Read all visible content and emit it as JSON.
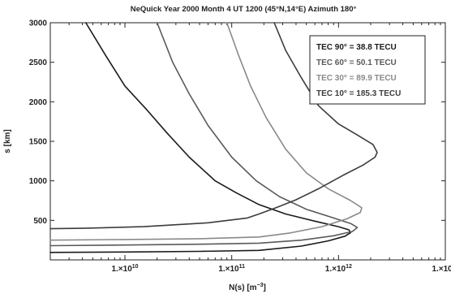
{
  "chart_data": {
    "type": "line",
    "title": "NeQuick   Year 2000  Month 4  UT 1200   (45°N,14°E)   Azimuth 180°",
    "xlabel_base": "N(s) [m",
    "xlabel_exp": "−3",
    "xlabel_tail": "]",
    "ylabel": "s [km]",
    "xscale": "log",
    "xlim": [
      2000000000.0,
      10000000000000.0
    ],
    "ylim": [
      0,
      3000
    ],
    "xticks": [
      {
        "value": 10000000000.0,
        "label": "1.×10",
        "exp": "10"
      },
      {
        "value": 100000000000.0,
        "label": "1.×10",
        "exp": "11"
      },
      {
        "value": 1000000000000.0,
        "label": "1.×10",
        "exp": "12"
      },
      {
        "value": 10000000000000.0,
        "label": "1.×10",
        "exp": "13"
      }
    ],
    "yticks": [
      {
        "value": 500,
        "label": "500"
      },
      {
        "value": 1000,
        "label": "1000"
      },
      {
        "value": 1500,
        "label": "1500"
      },
      {
        "value": 2000,
        "label": "2000"
      },
      {
        "value": 2500,
        "label": "2500"
      },
      {
        "value": 3000,
        "label": "3000"
      }
    ],
    "grid": false,
    "legend_position": "top-right",
    "series": [
      {
        "name": "TEC 90° =   38.8 TECU",
        "color": "#1a1a1a",
        "points": [
          [
            2000000000.0,
            95
          ],
          [
            10000000000.0,
            100
          ],
          [
            50000000000.0,
            108
          ],
          [
            180000000000.0,
            120
          ],
          [
            450000000000.0,
            175
          ],
          [
            800000000000.0,
            240
          ],
          [
            1150000000000.0,
            300
          ],
          [
            1300000000000.0,
            345
          ],
          [
            1250000000000.0,
            380
          ],
          [
            1000000000000.0,
            420
          ],
          [
            600000000000.0,
            490
          ],
          [
            320000000000.0,
            580
          ],
          [
            180000000000.0,
            700
          ],
          [
            110000000000.0,
            850
          ],
          [
            70000000000.0,
            1000
          ],
          [
            40000000000.0,
            1300
          ],
          [
            25000000000.0,
            1600
          ],
          [
            16000000000.0,
            1900
          ],
          [
            10000000000.0,
            2200
          ],
          [
            6500000000.0,
            2600
          ],
          [
            4300000000.0,
            3000
          ]
        ]
      },
      {
        "name": "TEC 60° =   50.1 TECU",
        "color": "#5a5a5a",
        "points": [
          [
            2000000000.0,
            180
          ],
          [
            10000000000.0,
            188
          ],
          [
            50000000000.0,
            198
          ],
          [
            180000000000.0,
            212
          ],
          [
            450000000000.0,
            250
          ],
          [
            900000000000.0,
            305
          ],
          [
            1350000000000.0,
            360
          ],
          [
            1500000000000.0,
            410
          ],
          [
            1300000000000.0,
            460
          ],
          [
            900000000000.0,
            530
          ],
          [
            500000000000.0,
            640
          ],
          [
            280000000000.0,
            800
          ],
          [
            170000000000.0,
            1000
          ],
          [
            100000000000.0,
            1300
          ],
          [
            60000000000.0,
            1700
          ],
          [
            40000000000.0,
            2100
          ],
          [
            28000000000.0,
            2500
          ],
          [
            20000000000.0,
            3000
          ]
        ]
      },
      {
        "name": "TEC 30° =   89.9 TECU",
        "color": "#8a8a8a",
        "points": [
          [
            2000000000.0,
            250
          ],
          [
            10000000000.0,
            258
          ],
          [
            50000000000.0,
            268
          ],
          [
            180000000000.0,
            290
          ],
          [
            350000000000.0,
            340
          ],
          [
            700000000000.0,
            420
          ],
          [
            1200000000000.0,
            520
          ],
          [
            1600000000000.0,
            600
          ],
          [
            1650000000000.0,
            660
          ],
          [
            1300000000000.0,
            750
          ],
          [
            800000000000.0,
            900
          ],
          [
            500000000000.0,
            1100
          ],
          [
            320000000000.0,
            1400
          ],
          [
            210000000000.0,
            1800
          ],
          [
            150000000000.0,
            2200
          ],
          [
            115000000000.0,
            2600
          ],
          [
            90000000000.0,
            3000
          ]
        ]
      },
      {
        "name": "TEC 10° = 185.3 TECU",
        "color": "#3c3c3c",
        "points": [
          [
            2000000000.0,
            395
          ],
          [
            4000000000.0,
            400
          ],
          [
            15000000000.0,
            420
          ],
          [
            60000000000.0,
            470
          ],
          [
            140000000000.0,
            530
          ],
          [
            180000000000.0,
            580
          ],
          [
            260000000000.0,
            660
          ],
          [
            400000000000.0,
            760
          ],
          [
            650000000000.0,
            900
          ],
          [
            1100000000000.0,
            1070
          ],
          [
            1700000000000.0,
            1200
          ],
          [
            2200000000000.0,
            1300
          ],
          [
            2300000000000.0,
            1360
          ],
          [
            2100000000000.0,
            1460
          ],
          [
            1500000000000.0,
            1580
          ],
          [
            1000000000000.0,
            1720
          ],
          [
            650000000000.0,
            1950
          ],
          [
            450000000000.0,
            2300
          ],
          [
            320000000000.0,
            2650
          ],
          [
            250000000000.0,
            3000
          ]
        ]
      }
    ]
  }
}
